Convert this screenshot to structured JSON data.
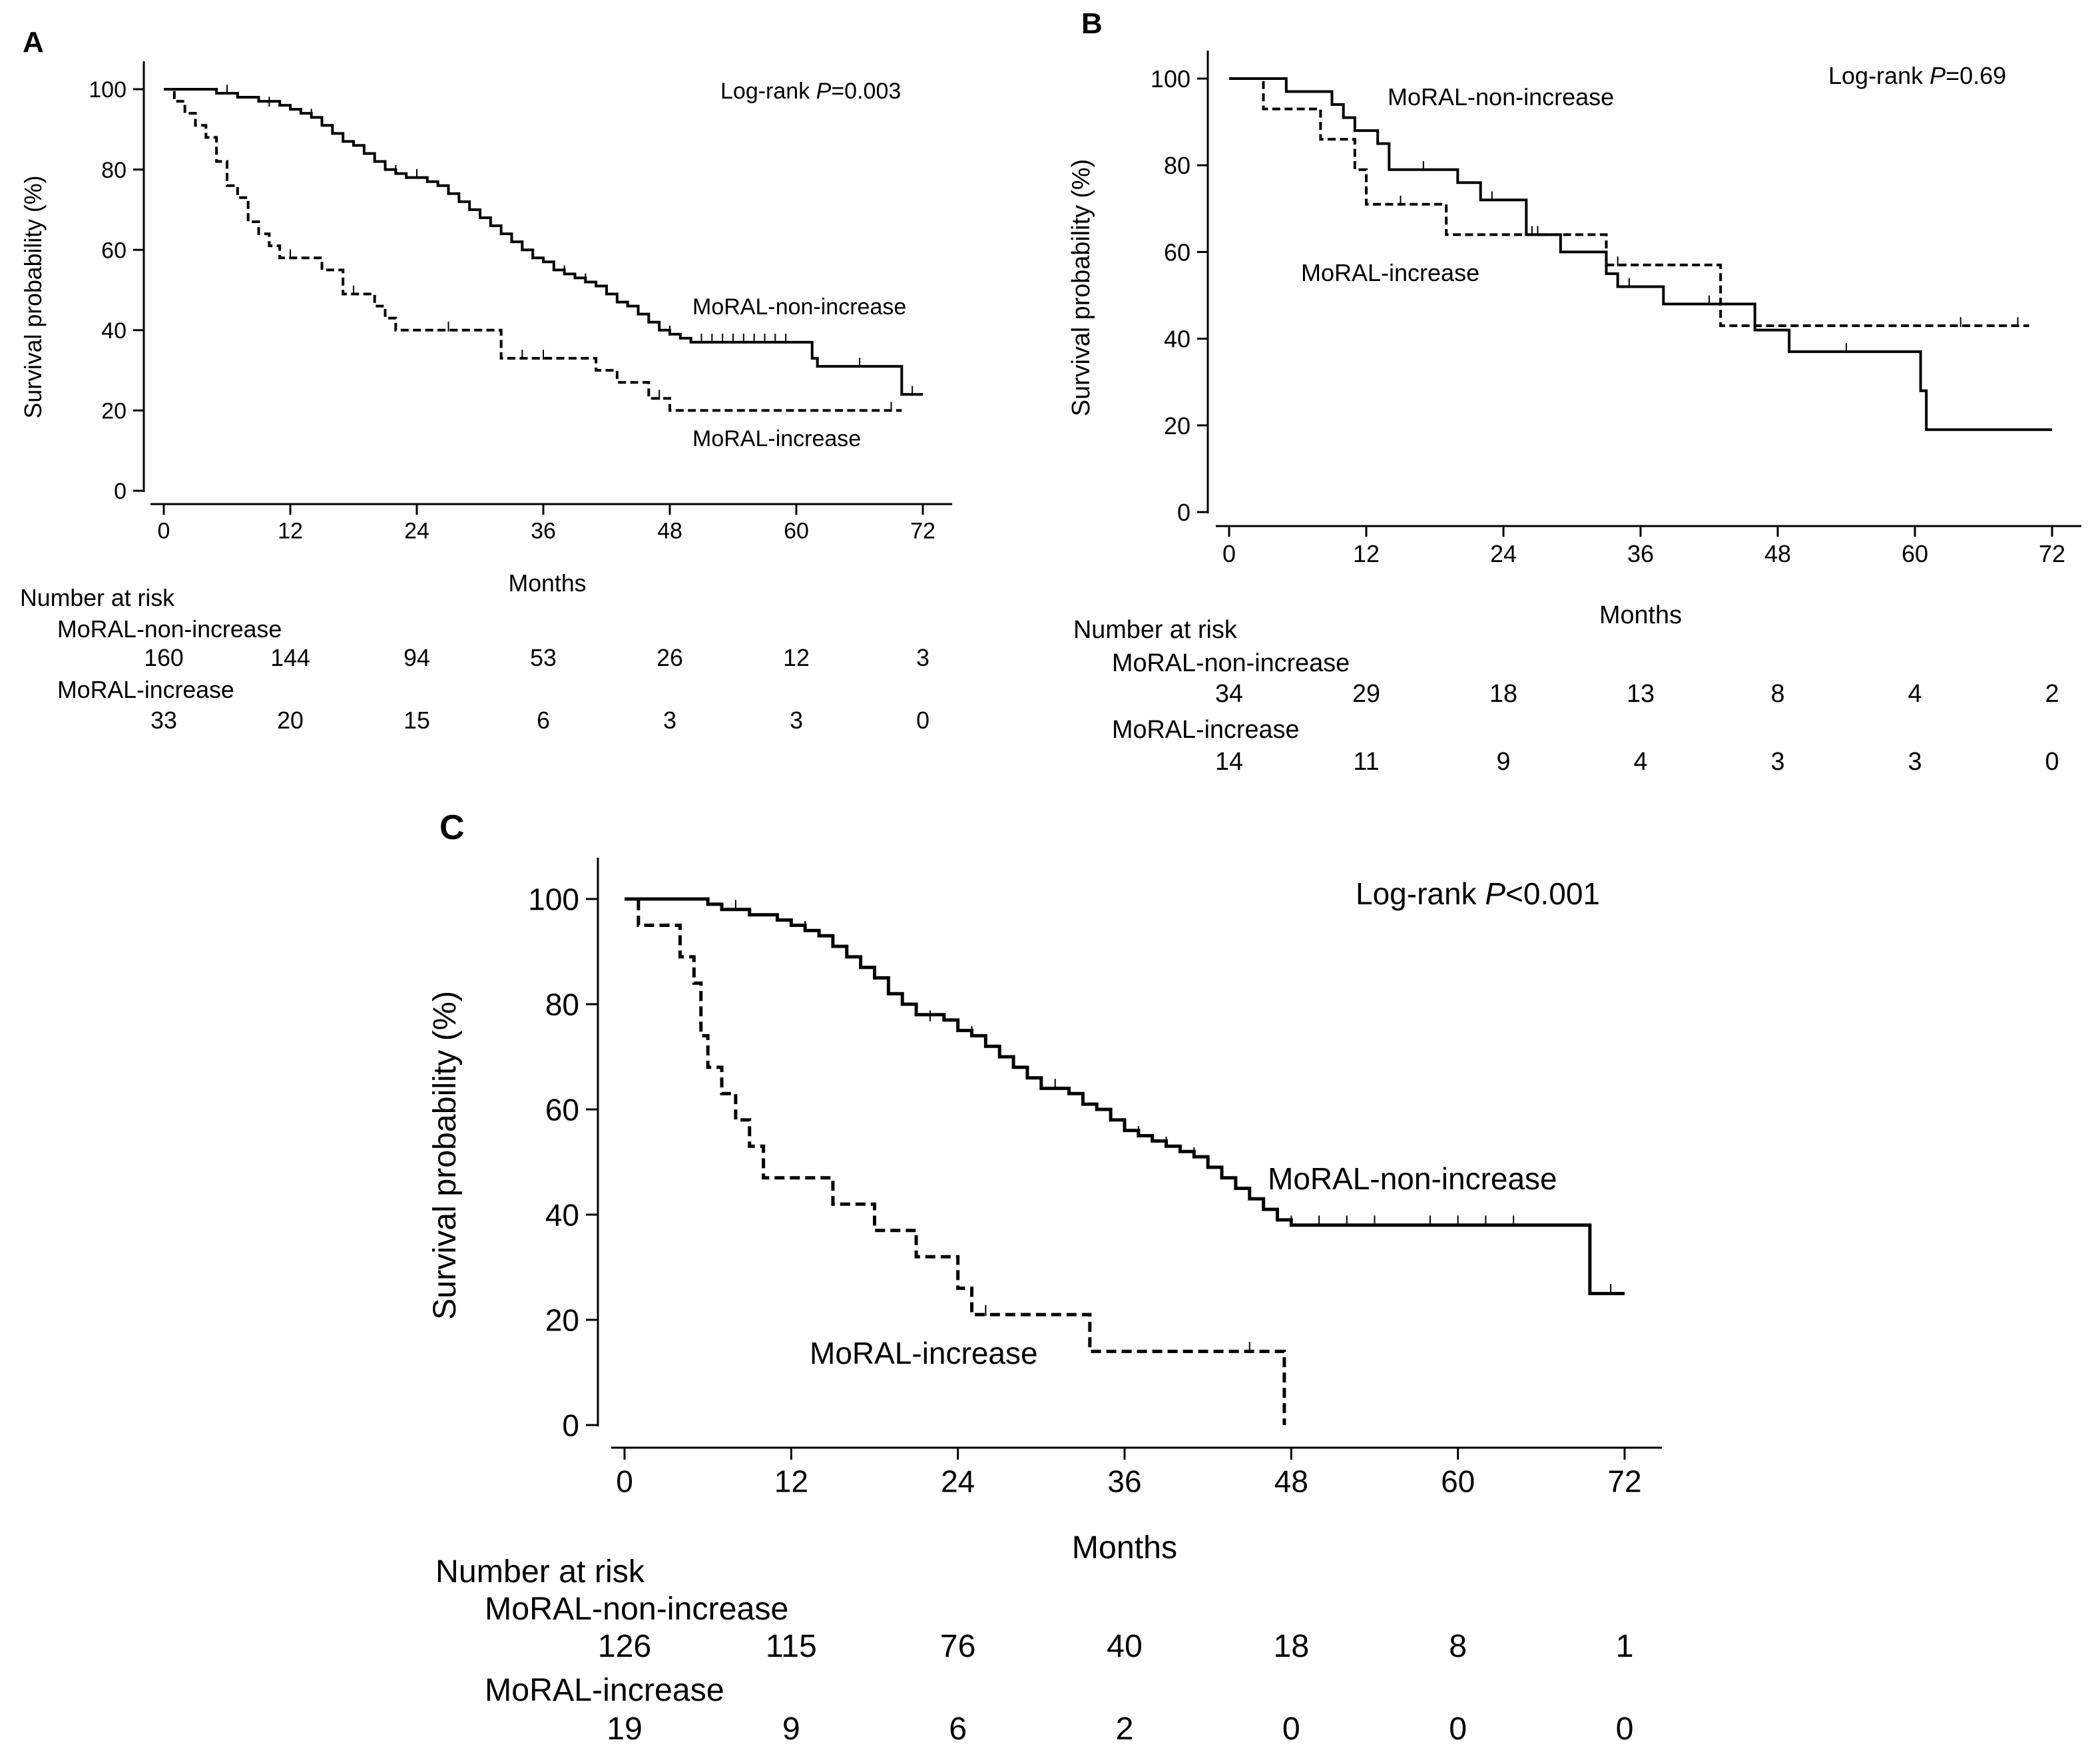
{
  "colors": {
    "line": "#000000",
    "background": "#ffffff"
  },
  "chart_data": [
    {
      "panel": "A",
      "type": "line",
      "subtype": "kaplan-meier",
      "annotation": {
        "prefix": "Log-rank ",
        "p_symbol": "P",
        "p_value": "=0.003"
      },
      "xlabel": "Months",
      "ylabel": "Survival probability (%)",
      "xlim": [
        0,
        72
      ],
      "ylim": [
        0,
        100
      ],
      "xticks": [
        0,
        12,
        24,
        36,
        48,
        60,
        72
      ],
      "yticks": [
        0,
        20,
        40,
        60,
        80,
        100
      ],
      "grid": false,
      "series": [
        {
          "name": "MoRAL-non-increase",
          "style": "solid",
          "points": [
            [
              0,
              100
            ],
            [
              5,
              99
            ],
            [
              7,
              98
            ],
            [
              9,
              97
            ],
            [
              11,
              96
            ],
            [
              12,
              95
            ],
            [
              13,
              94
            ],
            [
              14,
              93
            ],
            [
              15,
              91
            ],
            [
              16,
              89
            ],
            [
              17,
              87
            ],
            [
              18,
              86
            ],
            [
              19,
              84
            ],
            [
              20,
              82
            ],
            [
              21,
              80
            ],
            [
              22,
              79
            ],
            [
              23,
              78
            ],
            [
              25,
              77
            ],
            [
              26,
              76
            ],
            [
              27,
              74
            ],
            [
              28,
              72
            ],
            [
              29,
              70
            ],
            [
              30,
              68
            ],
            [
              31,
              66
            ],
            [
              32,
              64
            ],
            [
              33,
              62
            ],
            [
              34,
              60
            ],
            [
              35,
              58
            ],
            [
              36,
              57
            ],
            [
              37,
              55
            ],
            [
              38,
              54
            ],
            [
              39,
              53
            ],
            [
              40,
              52
            ],
            [
              41,
              51
            ],
            [
              42,
              49
            ],
            [
              43,
              47
            ],
            [
              44,
              46
            ],
            [
              45,
              44
            ],
            [
              46,
              42
            ],
            [
              47,
              40
            ],
            [
              48,
              39
            ],
            [
              49,
              38
            ],
            [
              50,
              37
            ],
            [
              61,
              37
            ],
            [
              61.5,
              33
            ],
            [
              62,
              31
            ],
            [
              69,
              31
            ],
            [
              70,
              24
            ],
            [
              72,
              24
            ]
          ],
          "censor_marks": [
            [
              6,
              99
            ],
            [
              10,
              96
            ],
            [
              14,
              93
            ],
            [
              17,
              87
            ],
            [
              20,
              82
            ],
            [
              22,
              79
            ],
            [
              24,
              78
            ],
            [
              27,
              74
            ],
            [
              30,
              68
            ],
            [
              33,
              62
            ],
            [
              35,
              58
            ],
            [
              38,
              54
            ],
            [
              40,
              52
            ],
            [
              43,
              47
            ],
            [
              46,
              42
            ],
            [
              48,
              39
            ],
            [
              51,
              37
            ],
            [
              52,
              37
            ],
            [
              53,
              37
            ],
            [
              54,
              37
            ],
            [
              55,
              37
            ],
            [
              56,
              37
            ],
            [
              57,
              37
            ],
            [
              58,
              37
            ],
            [
              59,
              37
            ],
            [
              66,
              31
            ],
            [
              71,
              24
            ]
          ],
          "risk": [
            160,
            144,
            94,
            53,
            26,
            12,
            3
          ]
        },
        {
          "name": "MoRAL-increase",
          "style": "dashed",
          "points": [
            [
              0,
              100
            ],
            [
              1,
              97
            ],
            [
              2,
              94
            ],
            [
              3,
              91
            ],
            [
              4,
              88
            ],
            [
              5,
              82
            ],
            [
              6,
              76
            ],
            [
              7,
              73
            ],
            [
              8,
              67
            ],
            [
              9,
              64
            ],
            [
              10,
              61
            ],
            [
              11,
              58
            ],
            [
              15,
              55
            ],
            [
              17,
              49
            ],
            [
              20,
              46
            ],
            [
              21,
              43
            ],
            [
              22,
              40
            ],
            [
              31,
              40
            ],
            [
              32,
              33
            ],
            [
              41,
              30
            ],
            [
              43,
              27
            ],
            [
              46,
              23
            ],
            [
              48,
              20
            ],
            [
              70,
              20
            ]
          ],
          "censor_marks": [
            [
              12,
              58
            ],
            [
              18,
              49
            ],
            [
              27,
              40
            ],
            [
              34,
              33
            ],
            [
              36,
              33
            ],
            [
              47,
              23
            ],
            [
              69,
              20
            ]
          ],
          "risk": [
            33,
            20,
            15,
            6,
            3,
            3,
            0
          ]
        }
      ],
      "risk_table_title": "Number at risk"
    },
    {
      "panel": "B",
      "type": "line",
      "subtype": "kaplan-meier",
      "annotation": {
        "prefix": "Log-rank ",
        "p_symbol": "P",
        "p_value": "=0.69"
      },
      "xlabel": "Months",
      "ylabel": "Survival probability (%)",
      "xlim": [
        0,
        72
      ],
      "ylim": [
        0,
        100
      ],
      "xticks": [
        0,
        12,
        24,
        36,
        48,
        60,
        72
      ],
      "yticks": [
        0,
        20,
        40,
        60,
        80,
        100
      ],
      "grid": false,
      "series": [
        {
          "name": "MoRAL-non-increase",
          "style": "solid",
          "points": [
            [
              0,
              100
            ],
            [
              5,
              97
            ],
            [
              9,
              94
            ],
            [
              10,
              91
            ],
            [
              11,
              88
            ],
            [
              13,
              85
            ],
            [
              14,
              79
            ],
            [
              19,
              79
            ],
            [
              20,
              76
            ],
            [
              22,
              72
            ],
            [
              26,
              64
            ],
            [
              29,
              60
            ],
            [
              33,
              55
            ],
            [
              34,
              52
            ],
            [
              38,
              48
            ],
            [
              46,
              42
            ],
            [
              49,
              37
            ],
            [
              60,
              37
            ],
            [
              60.5,
              28
            ],
            [
              61,
              19
            ],
            [
              72,
              19
            ]
          ],
          "censor_marks": [
            [
              17,
              79
            ],
            [
              23,
              72
            ],
            [
              26.5,
              64
            ],
            [
              35,
              52
            ],
            [
              42,
              48
            ],
            [
              54,
              37
            ]
          ],
          "risk": [
            34,
            29,
            18,
            13,
            8,
            4,
            2
          ]
        },
        {
          "name": "MoRAL-increase",
          "style": "dashed",
          "points": [
            [
              0,
              100
            ],
            [
              3,
              93
            ],
            [
              8,
              86
            ],
            [
              11,
              79
            ],
            [
              12,
              71
            ],
            [
              19,
              64
            ],
            [
              33,
              57
            ],
            [
              43,
              43
            ],
            [
              70,
              43
            ]
          ],
          "censor_marks": [
            [
              15,
              71
            ],
            [
              27,
              64
            ],
            [
              34,
              57
            ],
            [
              64,
              43
            ],
            [
              69,
              43
            ]
          ],
          "risk": [
            14,
            11,
            9,
            4,
            3,
            3,
            0
          ]
        }
      ],
      "risk_table_title": "Number at risk"
    },
    {
      "panel": "C",
      "type": "line",
      "subtype": "kaplan-meier",
      "annotation": {
        "prefix": "Log-rank ",
        "p_symbol": "P",
        "p_value": "<0.001"
      },
      "xlabel": "Months",
      "ylabel": "Survival probability (%)",
      "xlim": [
        0,
        72
      ],
      "ylim": [
        0,
        100
      ],
      "xticks": [
        0,
        12,
        24,
        36,
        48,
        60,
        72
      ],
      "yticks": [
        0,
        20,
        40,
        60,
        80,
        100
      ],
      "grid": false,
      "series": [
        {
          "name": "MoRAL-non-increase",
          "style": "solid",
          "points": [
            [
              0,
              100
            ],
            [
              6,
              99
            ],
            [
              7,
              98
            ],
            [
              9,
              97
            ],
            [
              11,
              96
            ],
            [
              12,
              95
            ],
            [
              13,
              94
            ],
            [
              14,
              93
            ],
            [
              15,
              91
            ],
            [
              16,
              89
            ],
            [
              17,
              87
            ],
            [
              18,
              85
            ],
            [
              19,
              82
            ],
            [
              20,
              80
            ],
            [
              21,
              78
            ],
            [
              23,
              77
            ],
            [
              24,
              75
            ],
            [
              25,
              74
            ],
            [
              26,
              72
            ],
            [
              27,
              70
            ],
            [
              28,
              68
            ],
            [
              29,
              66
            ],
            [
              30,
              64
            ],
            [
              32,
              63
            ],
            [
              33,
              61
            ],
            [
              34,
              60
            ],
            [
              35,
              58
            ],
            [
              36,
              56
            ],
            [
              37,
              55
            ],
            [
              38,
              54
            ],
            [
              39,
              53
            ],
            [
              40,
              52
            ],
            [
              41,
              51
            ],
            [
              42,
              49
            ],
            [
              43,
              47
            ],
            [
              44,
              45
            ],
            [
              45,
              43
            ],
            [
              46,
              41
            ],
            [
              47,
              39
            ],
            [
              48,
              38
            ],
            [
              69,
              38
            ],
            [
              69.5,
              25
            ],
            [
              72,
              25
            ]
          ],
          "censor_marks": [
            [
              8,
              98
            ],
            [
              13,
              94
            ],
            [
              16,
              89
            ],
            [
              19,
              82
            ],
            [
              22,
              77
            ],
            [
              25,
              74
            ],
            [
              28,
              68
            ],
            [
              31,
              64
            ],
            [
              33,
              61
            ],
            [
              35,
              58
            ],
            [
              37,
              55
            ],
            [
              39,
              53
            ],
            [
              41,
              51
            ],
            [
              43,
              47
            ],
            [
              46,
              41
            ],
            [
              48,
              38
            ],
            [
              50,
              38
            ],
            [
              52,
              38
            ],
            [
              54,
              38
            ],
            [
              58,
              38
            ],
            [
              60,
              38
            ],
            [
              62,
              38
            ],
            [
              64,
              38
            ],
            [
              71,
              25
            ]
          ],
          "risk": [
            126,
            115,
            76,
            40,
            18,
            8,
            1
          ]
        },
        {
          "name": "MoRAL-increase",
          "style": "dashed",
          "points": [
            [
              0,
              100
            ],
            [
              1,
              95
            ],
            [
              4,
              89
            ],
            [
              5,
              84
            ],
            [
              5.5,
              74
            ],
            [
              6,
              68
            ],
            [
              7,
              63
            ],
            [
              8,
              58
            ],
            [
              9,
              53
            ],
            [
              10,
              47
            ],
            [
              15,
              42
            ],
            [
              18,
              37
            ],
            [
              21,
              32
            ],
            [
              24,
              26
            ],
            [
              25,
              21
            ],
            [
              33,
              21
            ],
            [
              33.5,
              14
            ],
            [
              47,
              14
            ],
            [
              47.5,
              0
            ]
          ],
          "censor_marks": [
            [
              26,
              21
            ],
            [
              45,
              14
            ]
          ],
          "risk": [
            19,
            9,
            6,
            2,
            0,
            0,
            0
          ]
        }
      ],
      "risk_table_title": "Number at risk"
    }
  ]
}
